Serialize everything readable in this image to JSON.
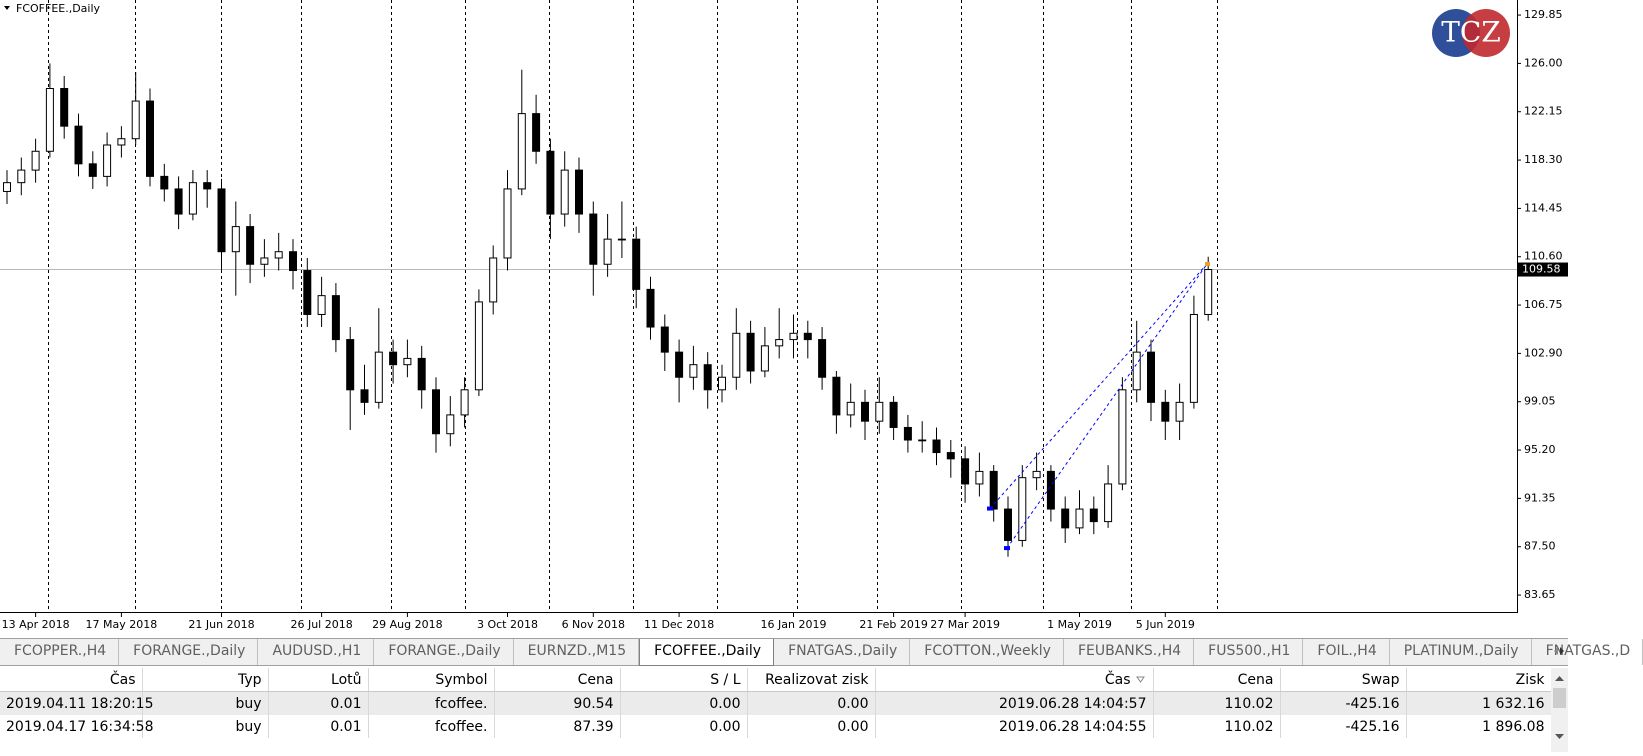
{
  "chart_data": {
    "type": "candlestick",
    "title": "FCOFFEE.,Daily",
    "categories": [
      null,
      null,
      "13 Apr 2018",
      null,
      null,
      null,
      null,
      null,
      "17 May 2018",
      null,
      null,
      null,
      null,
      null,
      null,
      "21 Jun 2018",
      null,
      null,
      null,
      null,
      null,
      null,
      "26 Jul 2018",
      null,
      null,
      null,
      null,
      null,
      "29 Aug 2018",
      null,
      null,
      null,
      null,
      null,
      null,
      "3 Oct 2018",
      null,
      null,
      null,
      null,
      null,
      "6 Nov 2018",
      null,
      null,
      null,
      null,
      null,
      "11 Dec 2018",
      null,
      null,
      null,
      null,
      null,
      null,
      null,
      "16 Jan 2019",
      null,
      null,
      null,
      null,
      null,
      null,
      "21 Feb 2019",
      null,
      null,
      null,
      null,
      "27 Mar 2019",
      null,
      null,
      null,
      null,
      null,
      null,
      null,
      "1 May 2019",
      null,
      null,
      null,
      null,
      null,
      "5 Jun 2019",
      null,
      null,
      null
    ],
    "open": [
      115.8,
      116.5,
      117.5,
      119,
      124,
      121,
      118,
      117,
      119.5,
      120,
      123,
      117,
      116,
      114,
      116.5,
      116,
      111,
      113,
      110,
      110.5,
      111,
      109.5,
      106,
      107.5,
      104,
      100,
      99,
      103,
      102,
      102.5,
      100,
      96.5,
      98,
      100,
      107,
      110.5,
      116,
      122,
      119,
      114,
      117.5,
      114,
      110,
      112,
      112,
      108,
      105,
      103,
      101,
      102,
      100,
      101,
      104.5,
      101.5,
      103.5,
      104,
      104.5,
      104,
      101,
      98,
      99,
      97.5,
      99,
      97,
      96,
      96,
      95,
      94.5,
      92.5,
      93.5,
      90.5,
      88,
      93,
      93.5,
      90.5,
      89,
      90.5,
      89.5,
      92.5,
      100,
      103,
      99,
      97.5,
      99,
      106
    ],
    "high": [
      117.5,
      118.5,
      120,
      126,
      125,
      122,
      119,
      120.5,
      121,
      125.3,
      124,
      118,
      117,
      117.5,
      117.5,
      116.8,
      115,
      114,
      112,
      112.5,
      112,
      110.5,
      109,
      108.5,
      105,
      102,
      106.5,
      104,
      104,
      103.5,
      101,
      99.5,
      101,
      108,
      111.5,
      117.5,
      125.5,
      123.5,
      120,
      119,
      118.5,
      115,
      114,
      115,
      113,
      109,
      106,
      104,
      103.5,
      103,
      102,
      106.5,
      105.5,
      105,
      106.5,
      106,
      105.5,
      105,
      101.5,
      100.5,
      100,
      101,
      99.5,
      98,
      97.5,
      97,
      96,
      95.5,
      95,
      94,
      91.5,
      94,
      95,
      94,
      91.5,
      92,
      91.5,
      94,
      101,
      105.5,
      104,
      100,
      100.5,
      107.5,
      110.6
    ],
    "low": [
      114.8,
      115.5,
      116.5,
      118.5,
      120,
      117,
      116,
      116.2,
      118.5,
      119.5,
      116.2,
      115,
      112.8,
      113.5,
      114.5,
      109.5,
      107.5,
      108.5,
      109,
      109.5,
      108,
      105,
      105,
      103,
      96.8,
      98,
      98.5,
      100.5,
      101,
      98.5,
      95,
      95.5,
      97,
      99.5,
      106,
      109.5,
      115.5,
      118,
      112,
      113,
      112.5,
      107.5,
      109,
      110.5,
      106.5,
      104,
      101.5,
      99,
      100,
      98.5,
      99,
      100,
      100.5,
      101,
      102.5,
      102.5,
      102.5,
      100,
      96.5,
      97,
      96,
      96.5,
      96,
      95,
      95,
      94,
      93,
      91,
      91.5,
      89.5,
      86.7,
      87.5,
      92,
      89.5,
      87.8,
      88.5,
      88.5,
      89,
      92,
      99,
      97.5,
      96,
      96,
      98.5,
      105.5
    ],
    "close": [
      116.5,
      117.5,
      119,
      124,
      121,
      118,
      117,
      119.5,
      120,
      123,
      117,
      116,
      114,
      116.5,
      116,
      111,
      113,
      110,
      110.5,
      111,
      109.5,
      106,
      107.5,
      104,
      100,
      99,
      103,
      102,
      102.5,
      100,
      96.5,
      98,
      100,
      107,
      110.5,
      116,
      122,
      119,
      114,
      117.5,
      114,
      110,
      112,
      112,
      108,
      105,
      103,
      101,
      102,
      100,
      101,
      104.5,
      101.5,
      103.5,
      104,
      104.5,
      104,
      101,
      98,
      99,
      97.5,
      99,
      97,
      96,
      96,
      95,
      94.5,
      92.5,
      93.5,
      90.5,
      88,
      93,
      93.5,
      90.5,
      89,
      90.5,
      89.5,
      92.5,
      100,
      103,
      99,
      97.5,
      99,
      106,
      109.58
    ],
    "ylim": [
      82.3,
      131.05
    ],
    "yticks": [
      129.85,
      {
        "value": 126,
        "label": "126.00"
      },
      122.15,
      {
        "value": 118.3,
        "label": "118.30"
      },
      114.45,
      {
        "value": 110.6,
        "label": "110.60"
      },
      106.75,
      {
        "value": 102.9,
        "label": "102.90"
      },
      99.05,
      {
        "value": 95.2,
        "label": "95.20"
      },
      91.35,
      {
        "value": 87.5,
        "label": "87.50"
      },
      83.65
    ],
    "last_price": 109.58,
    "up_color": "#ffffff",
    "down_color": "#000000",
    "line_color": "#000000"
  },
  "logo": "TCZ",
  "tabs": [
    "FCOPPER.,H4",
    "FORANGE.,Daily",
    "AUDUSD.,H1",
    "FORANGE.,Daily",
    "EURNZD.,M15",
    "FCOFFEE.,Daily",
    "FNATGAS.,Daily",
    "FCOTTON.,Weekly",
    "FEUBANKS.,H4",
    "FUS500.,H1",
    "FOIL.,H4",
    "PLATINUM.,Daily",
    "FNATGAS.,D"
  ],
  "active_tab": 5,
  "table": {
    "header": [
      "Čas",
      "Typ",
      "Lotů",
      "Symbol",
      "Cena",
      "S / L",
      "Realizovat zisk",
      "Čas",
      "Cena",
      "Swap",
      "Zisk"
    ],
    "rows": [
      [
        "2019.04.11 18:20:15",
        "buy",
        "0.01",
        "fcoffee.",
        "90.54",
        "0.00",
        "0.00",
        "2019.06.28 14:04:57",
        "110.02",
        "-425.16",
        "1 632.16"
      ],
      [
        "2019.04.17 16:34:58",
        "buy",
        "0.01",
        "fcoffee.",
        "87.39",
        "0.00",
        "0.00",
        "2019.06.28 14:04:55",
        "110.02",
        "-425.16",
        "1 896.08"
      ]
    ]
  }
}
